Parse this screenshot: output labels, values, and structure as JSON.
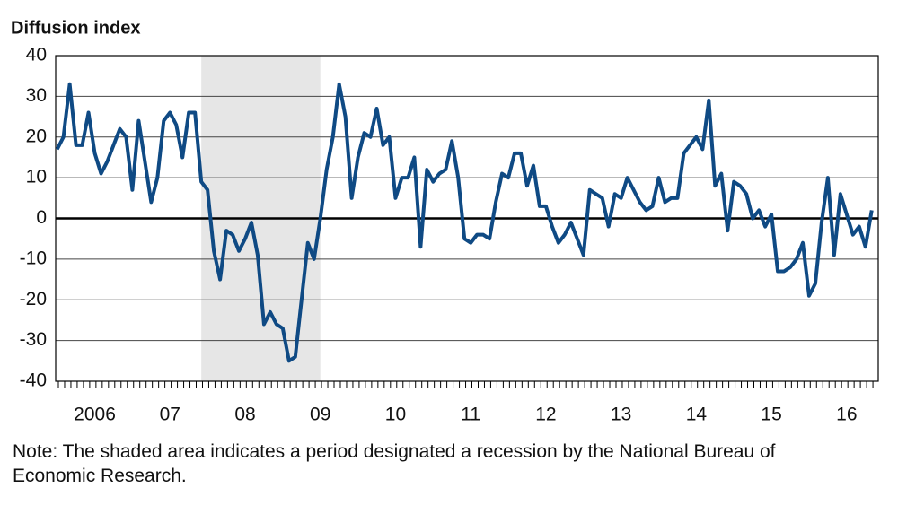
{
  "chart_data": {
    "type": "line",
    "y_axis_label": "Diffusion index",
    "note": "Note: The shaded area indicates a period designated a recession by the National Bureau of Economic Research.",
    "recession": [
      2007.917,
      2009.5
    ],
    "recession_color": "#e6e6e6",
    "grid": true,
    "xlim": [
      2005.98,
      2016.92
    ],
    "ylim": [
      -40,
      40
    ],
    "yticks": [
      -40,
      -30,
      -20,
      -10,
      0,
      10,
      20,
      30,
      40
    ],
    "xticks": [
      {
        "value": 2006.5,
        "label": "2006"
      },
      {
        "value": 2007.5,
        "label": "07"
      },
      {
        "value": 2008.5,
        "label": "08"
      },
      {
        "value": 2009.5,
        "label": "09"
      },
      {
        "value": 2010.5,
        "label": "10"
      },
      {
        "value": 2011.5,
        "label": "11"
      },
      {
        "value": 2012.5,
        "label": "12"
      },
      {
        "value": 2013.5,
        "label": "13"
      },
      {
        "value": 2014.5,
        "label": "14"
      },
      {
        "value": 2015.5,
        "label": "15"
      },
      {
        "value": 2016.5,
        "label": "16"
      }
    ],
    "color": "#0f4a84",
    "start": 2006,
    "values": [
      17,
      20,
      33,
      18,
      18,
      26,
      16,
      11,
      14,
      18,
      22,
      20,
      7,
      24,
      14,
      4,
      10,
      24,
      26,
      23,
      15,
      26,
      26,
      9,
      7,
      -8,
      -15,
      -3,
      -4,
      -8,
      -5,
      -1,
      -9,
      -26,
      -23,
      -26,
      -27,
      -35,
      -34,
      -20,
      -6,
      -10,
      0,
      12,
      20,
      33,
      25,
      5,
      15,
      21,
      20,
      27,
      18,
      20,
      5,
      10,
      10,
      15,
      -7,
      12,
      9,
      11,
      12,
      19,
      10,
      -5,
      -6,
      -4,
      -4,
      -5,
      4,
      11,
      10,
      16,
      16,
      8,
      13,
      3,
      3,
      -2,
      -6,
      -4,
      -1,
      -5,
      -9,
      7,
      6,
      5,
      -2,
      6,
      5,
      10,
      7,
      4,
      2,
      3,
      10,
      4,
      5,
      5,
      16,
      18,
      20,
      17,
      29,
      8,
      11,
      -3,
      9,
      8,
      6,
      0,
      2,
      -2,
      1,
      -13,
      -13,
      -12,
      -10,
      -6,
      -19,
      -16,
      -1,
      10,
      -9,
      6,
      1,
      -4,
      -2,
      -7,
      2
    ]
  }
}
